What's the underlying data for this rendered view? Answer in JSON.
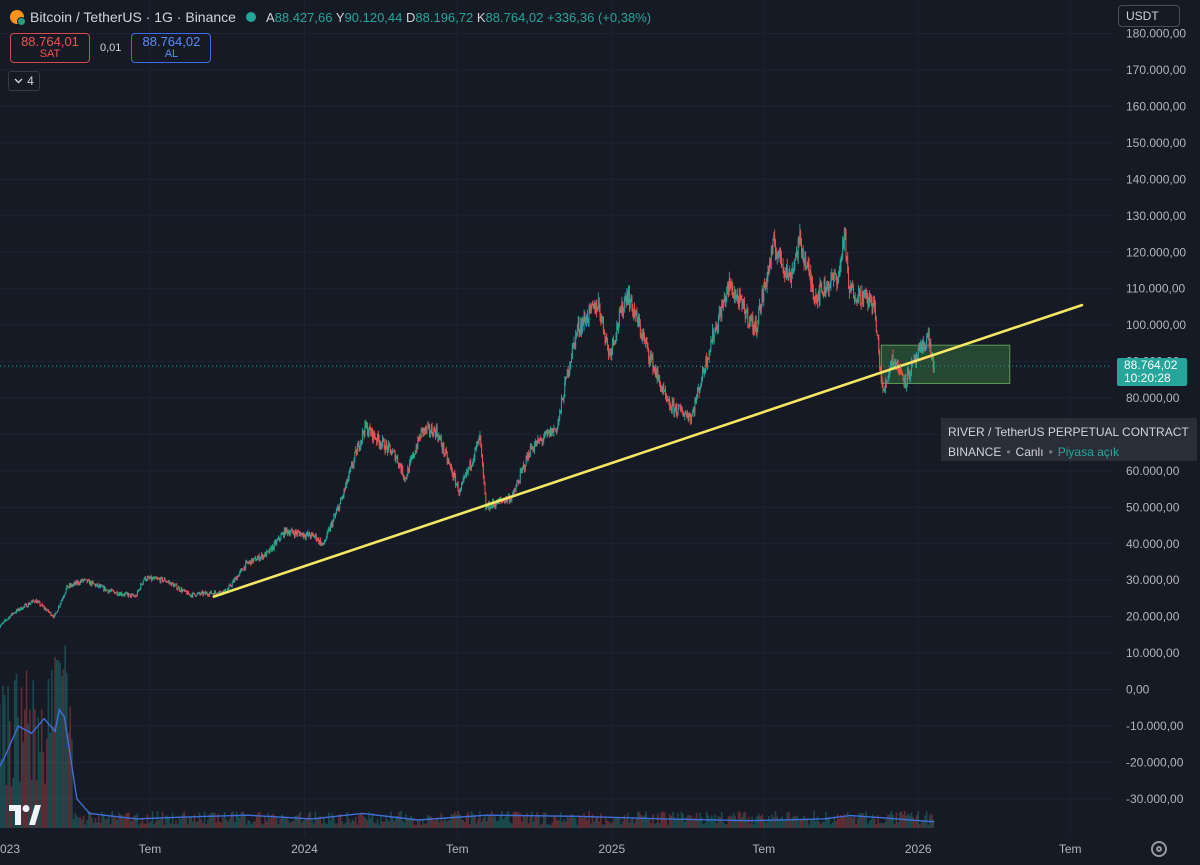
{
  "header": {
    "symbol": "Bitcoin / TetherUS · 1G · Binance",
    "open_label": "A",
    "open": "88.427,66",
    "high_label": "Y",
    "high": "90.120,44",
    "low_label": "D",
    "low": "88.196,72",
    "close_label": "K",
    "close": "88.764,02",
    "change": "+336,36 (+0,38%)"
  },
  "trade": {
    "sell_price": "88.764,01",
    "sell_label": "SAT",
    "spread": "0,01",
    "buy_price": "88.764,02",
    "buy_label": "AL"
  },
  "indicators_collapse": {
    "count": "4",
    "icon": "chevron-down-icon"
  },
  "currency": "USDT",
  "price_tag": {
    "price": "88.764,02",
    "countdown": "10:20:28"
  },
  "tooltip": {
    "title": "RIVER / TetherUS PERPETUAL CONTRACT",
    "exchange": "BINANCE",
    "separator": "•",
    "state": "Canlı",
    "status": "Piyasa açık"
  },
  "colors": {
    "background": "#161a25",
    "up": "#26a69a",
    "down": "#ef5350",
    "trendline": "#f5e663",
    "zone": "#4caf50",
    "volume_line": "#3f6fd8"
  },
  "chart_data": {
    "type": "candlestick",
    "x_ticks": [
      "023",
      "Tem",
      "2024",
      "Tem",
      "2025",
      "Tem",
      "2026",
      "Tem"
    ],
    "y_ticks": [
      "180.000,00",
      "170.000,00",
      "160.000,00",
      "150.000,00",
      "140.000,00",
      "130.000,00",
      "120.000,00",
      "110.000,00",
      "100.000,00",
      "90.000,00",
      "80.000,00",
      "70.000,00",
      "60.000,00",
      "50.000,00",
      "40.000,00",
      "30.000,00",
      "20.000,00",
      "10.000,00",
      "0,00",
      "-10.000,00",
      "-20.000,00",
      "-30.000,00"
    ],
    "y_tick_values": [
      180000,
      170000,
      160000,
      150000,
      140000,
      130000,
      120000,
      110000,
      100000,
      90000,
      80000,
      70000,
      60000,
      50000,
      40000,
      30000,
      20000,
      10000,
      0,
      -10000,
      -20000,
      -30000
    ],
    "ylim": [
      -38000,
      181000
    ],
    "x_start": "2023-01-01",
    "x_end": "2026-08-15",
    "price_path": [
      [
        "2023-01-01",
        16600
      ],
      [
        "2023-01-20",
        21000
      ],
      [
        "2023-02-15",
        24500
      ],
      [
        "2023-03-10",
        20000
      ],
      [
        "2023-03-25",
        28000
      ],
      [
        "2023-04-14",
        30000
      ],
      [
        "2023-05-15",
        27000
      ],
      [
        "2023-06-15",
        25500
      ],
      [
        "2023-06-25",
        30500
      ],
      [
        "2023-07-20",
        30000
      ],
      [
        "2023-08-18",
        26000
      ],
      [
        "2023-09-15",
        26500
      ],
      [
        "2023-10-01",
        27000
      ],
      [
        "2023-10-25",
        34500
      ],
      [
        "2023-11-20",
        37500
      ],
      [
        "2023-12-10",
        43500
      ],
      [
        "2024-01-15",
        42000
      ],
      [
        "2024-01-24",
        39500
      ],
      [
        "2024-02-15",
        52000
      ],
      [
        "2024-03-05",
        66000
      ],
      [
        "2024-03-14",
        72000
      ],
      [
        "2024-04-20",
        64000
      ],
      [
        "2024-05-01",
        58000
      ],
      [
        "2024-05-21",
        71000
      ],
      [
        "2024-06-07",
        71000
      ],
      [
        "2024-07-05",
        54000
      ],
      [
        "2024-07-29",
        69000
      ],
      [
        "2024-08-05",
        50000
      ],
      [
        "2024-09-06",
        53000
      ],
      [
        "2024-09-27",
        66000
      ],
      [
        "2024-10-29",
        72000
      ],
      [
        "2024-11-12",
        89000
      ],
      [
        "2024-11-22",
        99000
      ],
      [
        "2024-12-17",
        106000
      ],
      [
        "2024-12-30",
        92000
      ],
      [
        "2025-01-20",
        109000
      ],
      [
        "2025-02-25",
        86000
      ],
      [
        "2025-03-10",
        78000
      ],
      [
        "2025-04-07",
        75000
      ],
      [
        "2025-05-01",
        96000
      ],
      [
        "2025-05-22",
        111000
      ],
      [
        "2025-06-22",
        99000
      ],
      [
        "2025-07-14",
        122000
      ],
      [
        "2025-08-02",
        113000
      ],
      [
        "2025-08-14",
        123000
      ],
      [
        "2025-09-01",
        108000
      ],
      [
        "2025-09-30",
        114000
      ],
      [
        "2025-10-06",
        126000
      ],
      [
        "2025-10-11",
        110000
      ],
      [
        "2025-11-10",
        106000
      ],
      [
        "2025-11-21",
        81000
      ],
      [
        "2025-12-02",
        91000
      ],
      [
        "2025-12-18",
        85000
      ],
      [
        "2026-01-14",
        97000
      ],
      [
        "2026-01-20",
        88764
      ]
    ],
    "last_price": 88764.02,
    "trendline": [
      [
        "2023-09-15",
        25500
      ],
      [
        "2026-07-15",
        105500
      ]
    ],
    "rectangle": {
      "from": "2025-11-18",
      "to": "2026-04-20",
      "low": 84000,
      "high": 94500
    },
    "volume_line": [
      [
        "2023-01-01",
        -22000
      ],
      [
        "2023-01-10",
        -18000
      ],
      [
        "2023-01-25",
        -10000
      ],
      [
        "2023-02-10",
        -12000
      ],
      [
        "2023-02-25",
        -8000
      ],
      [
        "2023-03-10",
        -11500
      ],
      [
        "2023-03-15",
        -5500
      ],
      [
        "2023-03-21",
        -7500
      ],
      [
        "2023-04-05",
        -30000
      ],
      [
        "2023-04-20",
        -34000
      ],
      [
        "2023-06-15",
        -35500
      ],
      [
        "2023-08-10",
        -35000
      ],
      [
        "2023-10-25",
        -34500
      ],
      [
        "2024-01-10",
        -35500
      ],
      [
        "2024-03-10",
        -34000
      ],
      [
        "2024-05-15",
        -35800
      ],
      [
        "2024-08-05",
        -34500
      ],
      [
        "2024-11-20",
        -34800
      ],
      [
        "2025-03-05",
        -35500
      ],
      [
        "2025-06-15",
        -36000
      ],
      [
        "2025-09-10",
        -35500
      ],
      [
        "2025-10-12",
        -34600
      ],
      [
        "2025-11-20",
        -35200
      ],
      [
        "2026-01-20",
        -36300
      ]
    ]
  }
}
